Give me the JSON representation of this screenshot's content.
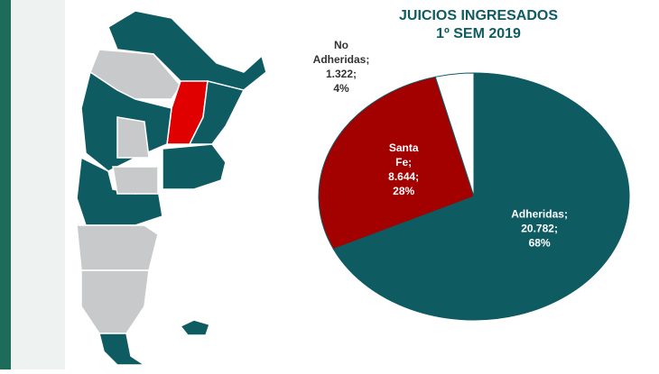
{
  "chart_data": {
    "type": "pie",
    "title": "JUICIOS INGRESADOS",
    "subtitle": "1º SEM 2019",
    "categories": [
      "Adheridas;",
      "Santa Fe;",
      "No Adheridas;"
    ],
    "values": [
      68,
      28,
      4
    ],
    "value_labels": [
      "68%",
      "28%",
      "4%"
    ],
    "counts": [
      20782,
      8644,
      1322
    ],
    "count_labels": [
      "20.782;",
      "8.644;",
      "1.322;"
    ],
    "colors": [
      "#0f5b62",
      "#a30000",
      "#ffffff"
    ]
  }
}
